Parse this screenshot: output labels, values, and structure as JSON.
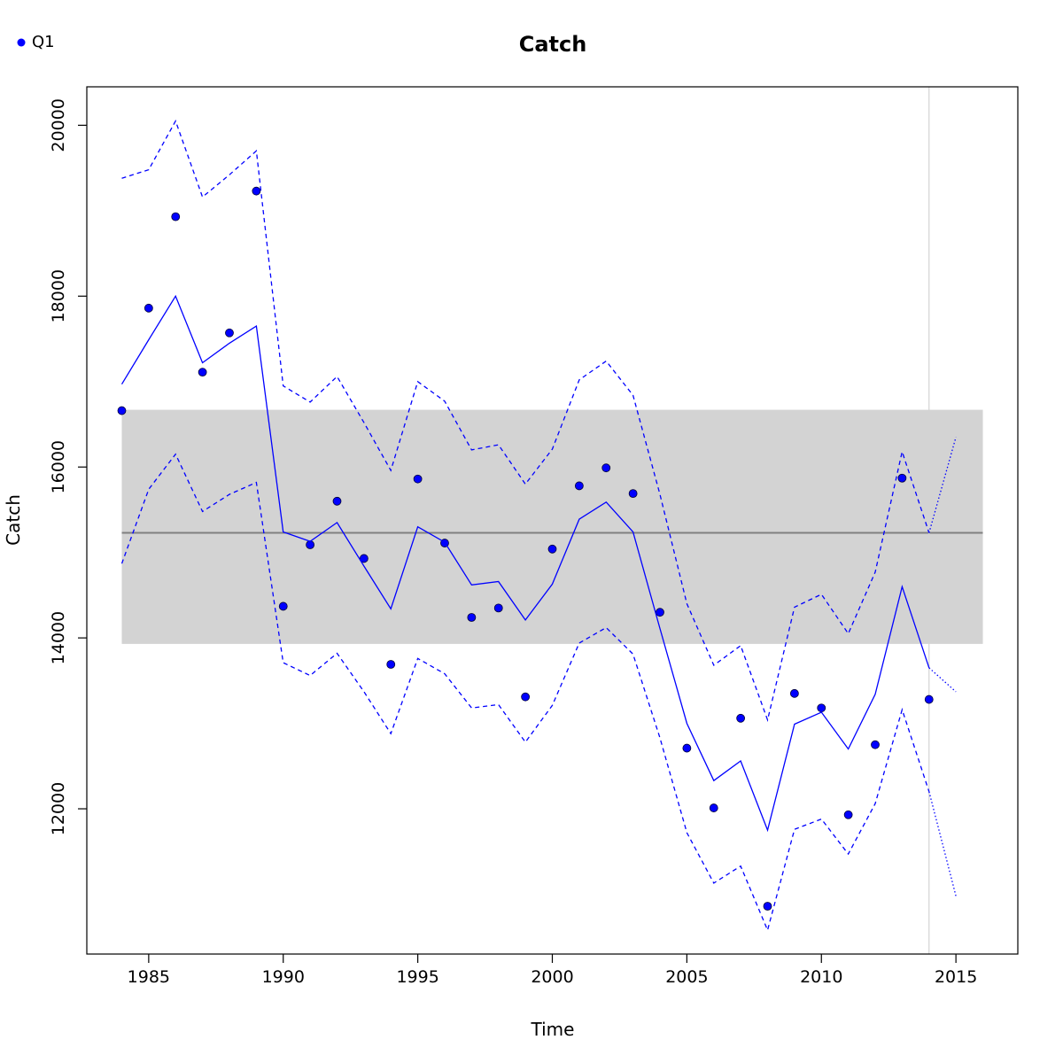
{
  "chart_data": {
    "type": "line",
    "title": "Catch",
    "xlabel": "Time",
    "ylabel": "Catch",
    "xlim": [
      1982.7,
      2017.3
    ],
    "ylim": [
      10300,
      20450
    ],
    "x_ticks": [
      1985,
      1990,
      1995,
      2000,
      2005,
      2010,
      2015
    ],
    "y_ticks": [
      12000,
      14000,
      16000,
      18000,
      20000
    ],
    "grid": false,
    "legend_position": "top-left",
    "legend": [
      {
        "label": "Q1",
        "marker": "point",
        "color": "#0000ff"
      }
    ],
    "colors": {
      "series": "#0000ff",
      "band": "#d3d3d3",
      "mean_line": "#808080",
      "marker_vline": "#d3d3d3"
    },
    "band": {
      "x_range": [
        1984,
        2016
      ],
      "y_range": [
        13930,
        16670
      ]
    },
    "mean_line": {
      "y": 15230,
      "x_range": [
        1984,
        2016
      ]
    },
    "vertical_marker": {
      "x": 2014
    },
    "series": [
      {
        "name": "Q1",
        "style": "points",
        "x": [
          1984,
          1985,
          1986,
          1987,
          1988,
          1989,
          1990,
          1991,
          1992,
          1993,
          1994,
          1995,
          1996,
          1997,
          1998,
          1999,
          2000,
          2001,
          2002,
          2003,
          2004,
          2005,
          2006,
          2007,
          2008,
          2009,
          2010,
          2011,
          2012,
          2013,
          2014
        ],
        "values": [
          16660,
          17860,
          18930,
          17110,
          17570,
          19230,
          14370,
          15090,
          15600,
          14930,
          13690,
          15860,
          15110,
          14240,
          14350,
          13310,
          15040,
          15780,
          15990,
          15690,
          14300,
          12710,
          12010,
          13060,
          10860,
          13350,
          13180,
          11930,
          12750,
          15870,
          13280
        ]
      },
      {
        "name": "",
        "style": "solid",
        "x": [
          1984,
          1985,
          1986,
          1987,
          1988,
          1989,
          1990,
          1991,
          1992,
          1993,
          1994,
          1995,
          1996,
          1997,
          1998,
          1999,
          2000,
          2001,
          2002,
          2003,
          2004,
          2005,
          2006,
          2007,
          2008,
          2009,
          2010,
          2011,
          2012,
          2013,
          2014
        ],
        "values": [
          16970,
          17490,
          18000,
          17220,
          17450,
          17650,
          15240,
          15130,
          15350,
          14840,
          14340,
          15300,
          15120,
          14620,
          14660,
          14210,
          14630,
          15390,
          15590,
          15240,
          14110,
          13000,
          12330,
          12560,
          11750,
          12990,
          13130,
          12700,
          13340,
          14600,
          13650
        ]
      },
      {
        "name": "",
        "style": "dashed",
        "x": [
          1984,
          1985,
          1986,
          1987,
          1988,
          1989,
          1990,
          1991,
          1992,
          1993,
          1994,
          1995,
          1996,
          1997,
          1998,
          1999,
          2000,
          2001,
          2002,
          2003,
          2004,
          2005,
          2006,
          2007,
          2008,
          2009,
          2010,
          2011,
          2012,
          2013,
          2014
        ],
        "values": [
          19380,
          19480,
          20050,
          19160,
          19420,
          19700,
          16950,
          16760,
          17060,
          16520,
          15960,
          17000,
          16770,
          16200,
          16260,
          15800,
          16210,
          17020,
          17240,
          16840,
          15680,
          14400,
          13680,
          13910,
          13040,
          14360,
          14510,
          14050,
          14770,
          16180,
          15230
        ]
      },
      {
        "name": "",
        "style": "dashed",
        "x": [
          1984,
          1985,
          1986,
          1987,
          1988,
          1989,
          1990,
          1991,
          1992,
          1993,
          1994,
          1995,
          1996,
          1997,
          1998,
          1999,
          2000,
          2001,
          2002,
          2003,
          2004,
          2005,
          2006,
          2007,
          2008,
          2009,
          2010,
          2011,
          2012,
          2013,
          2014
        ],
        "values": [
          14870,
          15740,
          16150,
          15480,
          15680,
          15820,
          13710,
          13560,
          13820,
          13370,
          12880,
          13760,
          13580,
          13180,
          13220,
          12780,
          13210,
          13940,
          14120,
          13810,
          12830,
          11720,
          11130,
          11330,
          10580,
          11760,
          11880,
          11470,
          12060,
          13160,
          12200
        ]
      },
      {
        "name": "",
        "style": "dotted",
        "x": [
          2014,
          2015
        ],
        "values": [
          13650,
          13370
        ]
      },
      {
        "name": "",
        "style": "dotted",
        "x": [
          2014,
          2015
        ],
        "values": [
          15230,
          16350
        ]
      },
      {
        "name": "",
        "style": "dotted",
        "x": [
          2014,
          2015
        ],
        "values": [
          12200,
          10980
        ]
      }
    ]
  }
}
